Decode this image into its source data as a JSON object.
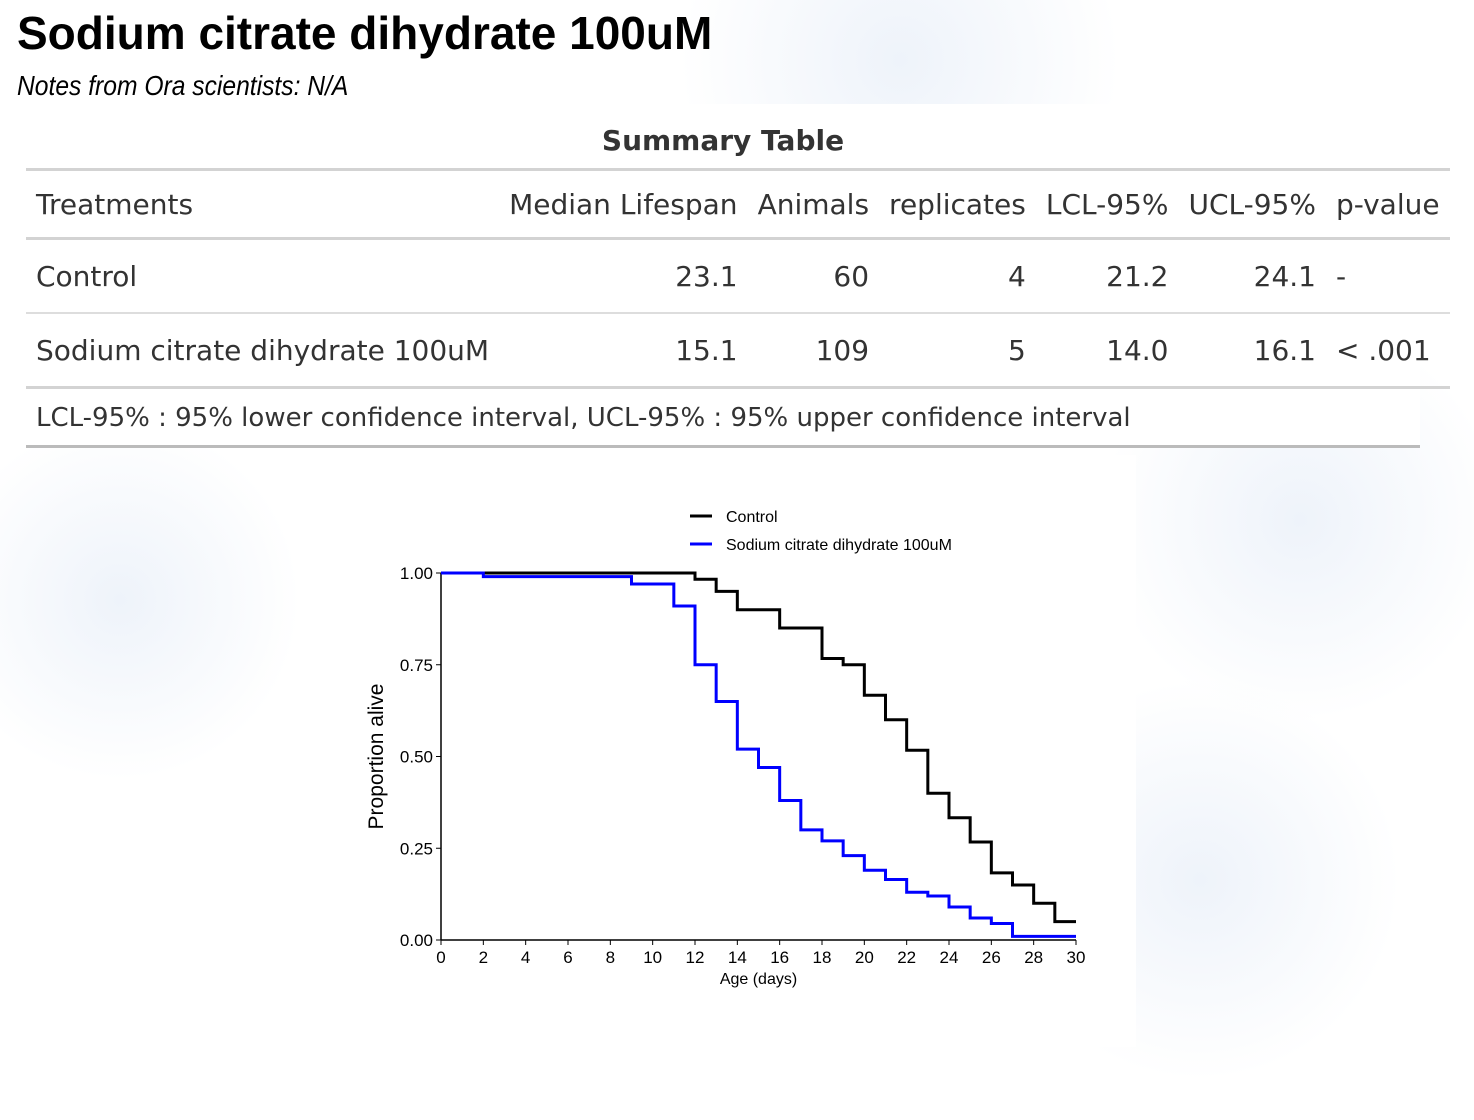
{
  "header": {
    "title": "Sodium citrate dihydrate 100uM",
    "notes": "Notes from Ora scientists: N/A"
  },
  "summary_table": {
    "caption": "Summary Table",
    "columns": [
      "Treatments",
      "Median Lifespan",
      "Animals",
      "replicates",
      "LCL-95%",
      "UCL-95%",
      "p-value"
    ],
    "rows": [
      [
        "Control",
        "23.1",
        "60",
        "4",
        "21.2",
        "24.1",
        "-"
      ],
      [
        "Sodium citrate dihydrate 100uM",
        "15.1",
        "109",
        "5",
        "14.0",
        "16.1",
        "< .001"
      ]
    ],
    "footnote": "LCL-95% : 95% lower confidence interval, UCL-95% : 95% upper confidence interval"
  },
  "chart_data": {
    "type": "line",
    "step": true,
    "xlabel": "Age (days)",
    "ylabel": "Proportion alive",
    "xlim": [
      0,
      30
    ],
    "ylim": [
      0,
      1
    ],
    "xticks": [
      "0",
      "2",
      "4",
      "6",
      "8",
      "10",
      "12",
      "14",
      "16",
      "18",
      "20",
      "22",
      "24",
      "26",
      "28",
      "30"
    ],
    "yticks": [
      "0.00",
      "0.25",
      "0.50",
      "0.75",
      "1.00"
    ],
    "legend_position": "top",
    "series": [
      {
        "name": "Control",
        "color": "#000000",
        "x": [
          0,
          12,
          13,
          14,
          16,
          18,
          19,
          20,
          21,
          22,
          23,
          24,
          25,
          26,
          27,
          28,
          29,
          30
        ],
        "y": [
          1.0,
          0.983,
          0.95,
          0.9,
          0.85,
          0.767,
          0.75,
          0.667,
          0.6,
          0.517,
          0.4,
          0.333,
          0.267,
          0.183,
          0.15,
          0.1,
          0.05,
          0.05
        ]
      },
      {
        "name": "Sodium citrate dihydrate 100uM",
        "color": "#0000ff",
        "x": [
          0,
          2,
          9,
          11,
          12,
          13,
          14,
          15,
          16,
          17,
          18,
          19,
          20,
          21,
          22,
          23,
          24,
          25,
          26,
          27,
          30
        ],
        "y": [
          1.0,
          0.99,
          0.97,
          0.91,
          0.75,
          0.65,
          0.52,
          0.47,
          0.38,
          0.3,
          0.27,
          0.23,
          0.19,
          0.165,
          0.13,
          0.12,
          0.09,
          0.06,
          0.045,
          0.01,
          0.01
        ]
      }
    ]
  }
}
